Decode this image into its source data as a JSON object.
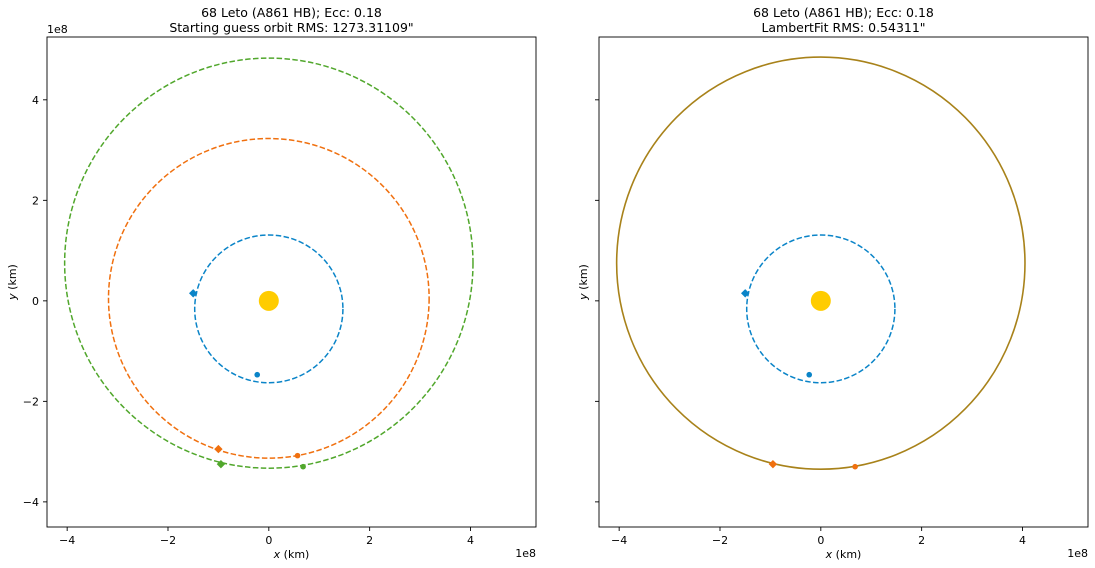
{
  "chart_data": [
    {
      "type": "scatter",
      "title_line1": "68 Leto (A861 HB); Ecc: 0.18",
      "title_line2": "Starting guess orbit RMS: 1273.31109\"",
      "xlabel": "x (km)",
      "ylabel": "y (km)",
      "xlabel_var": "x",
      "xlabel_unit": " (km)",
      "ylabel_var": "y",
      "ylabel_unit": " (km)",
      "offset_text_x": "1e8",
      "offset_text_y": "1e8",
      "xlim": [
        -4.4,
        5.3
      ],
      "ylim": [
        -4.5,
        5.25
      ],
      "xticks": [
        -4,
        -2,
        0,
        2,
        4
      ],
      "yticks": [
        -4,
        -2,
        0,
        2,
        4
      ],
      "tick_labels_x": [
        "−4",
        "−2",
        "0",
        "2",
        "4"
      ],
      "tick_labels_y": [
        "−4",
        "−2",
        "0",
        "2",
        "4"
      ],
      "show_yticklabels": true,
      "sun": {
        "x": 0,
        "y": 0,
        "color": "#ffcc00"
      },
      "orbits": [
        {
          "cx": 0,
          "cy": -0.16,
          "rx": 1.47,
          "ry": 1.47,
          "color": "#0a84c8"
        },
        {
          "cx": 0,
          "cy": 0.05,
          "rx": 3.18,
          "ry": 3.18,
          "color": "#f0700f"
        },
        {
          "cx": 0,
          "cy": 0.75,
          "rx": 4.05,
          "ry": 4.08,
          "color": "#51a72c"
        }
      ],
      "markers": [
        {
          "x": -1.5,
          "y": 0.15,
          "shape": "diamond",
          "color": "#0a84c8"
        },
        {
          "x": -0.23,
          "y": -1.47,
          "shape": "circle",
          "color": "#0a84c8"
        },
        {
          "x": -1.0,
          "y": -2.95,
          "shape": "diamond",
          "color": "#f0700f"
        },
        {
          "x": 0.57,
          "y": -3.08,
          "shape": "circle",
          "color": "#f0700f"
        },
        {
          "x": -0.95,
          "y": -3.25,
          "shape": "diamond",
          "color": "#51a72c"
        },
        {
          "x": 0.68,
          "y": -3.3,
          "shape": "circle",
          "color": "#51a72c"
        }
      ]
    },
    {
      "type": "scatter",
      "title_line1": "68 Leto (A861 HB); Ecc: 0.18",
      "title_line2": "LambertFit RMS: 0.54311\"",
      "xlabel": "x (km)",
      "ylabel": "y (km)",
      "xlabel_var": "x",
      "xlabel_unit": " (km)",
      "ylabel_var": "y",
      "ylabel_unit": " (km)",
      "offset_text_x": "1e8",
      "offset_text_y": "",
      "xlim": [
        -4.4,
        5.3
      ],
      "ylim": [
        -4.5,
        5.25
      ],
      "xticks": [
        -4,
        -2,
        0,
        2,
        4
      ],
      "yticks": [
        -4,
        -2,
        0,
        2,
        4
      ],
      "tick_labels_x": [
        "−4",
        "−2",
        "0",
        "2",
        "4"
      ],
      "tick_labels_y": [
        "",
        "",
        "",
        "",
        ""
      ],
      "show_yticklabels": false,
      "sun": {
        "x": 0,
        "y": 0,
        "color": "#ffcc00"
      },
      "orbits": [
        {
          "cx": 0,
          "cy": -0.16,
          "rx": 1.47,
          "ry": 1.47,
          "color": "#0a84c8"
        },
        {
          "cx": 0,
          "cy": 0.75,
          "rx": 4.05,
          "ry": 4.1,
          "color": "#a8821a",
          "solid": true
        }
      ],
      "markers": [
        {
          "x": -1.5,
          "y": 0.15,
          "shape": "diamond",
          "color": "#0a84c8"
        },
        {
          "x": -0.23,
          "y": -1.47,
          "shape": "circle",
          "color": "#0a84c8"
        },
        {
          "x": -0.95,
          "y": -3.25,
          "shape": "diamond",
          "color": "#f0700f"
        },
        {
          "x": 0.68,
          "y": -3.3,
          "shape": "circle",
          "color": "#f0700f"
        }
      ]
    }
  ]
}
